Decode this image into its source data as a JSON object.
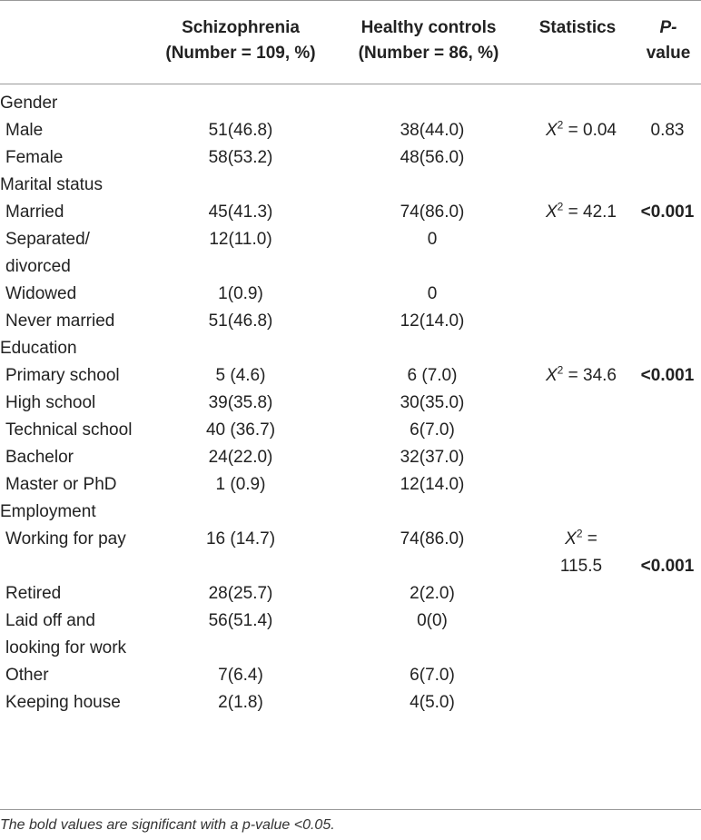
{
  "headers": {
    "schizophrenia_line1": "Schizophrenia",
    "schizophrenia_line2": "(Number = 109, %)",
    "controls_line1": "Healthy controls",
    "controls_line2": "(Number = 86, %)",
    "statistics": "Statistics",
    "pvalue_line1": "P-",
    "pvalue_line2": "value"
  },
  "rows": [
    {
      "label": "Gender",
      "schizophrenia": "",
      "controls": "",
      "stat_prefix": "",
      "stat_value": "",
      "p": "",
      "p_bold": false,
      "indent": false
    },
    {
      "label": "Male",
      "schizophrenia": "51(46.8)",
      "controls": "38(44.0)",
      "stat_prefix": "X",
      "stat_value": " = 0.04",
      "p": "0.83",
      "p_bold": false,
      "indent": true
    },
    {
      "label": "Female",
      "schizophrenia": "58(53.2)",
      "controls": "48(56.0)",
      "stat_prefix": "",
      "stat_value": "",
      "p": "",
      "p_bold": false,
      "indent": true
    },
    {
      "label": "Marital status",
      "schizophrenia": "",
      "controls": "",
      "stat_prefix": "",
      "stat_value": "",
      "p": "",
      "p_bold": false,
      "indent": false
    },
    {
      "label": "Married",
      "schizophrenia": "45(41.3)",
      "controls": "74(86.0)",
      "stat_prefix": "X",
      "stat_value": " = 42.1",
      "p": "<0.001",
      "p_bold": true,
      "indent": true
    },
    {
      "label": "Separated/ divorced",
      "schizophrenia": "12(11.0)",
      "controls": "0",
      "stat_prefix": "",
      "stat_value": "",
      "p": "",
      "p_bold": false,
      "indent": true
    },
    {
      "label": "Widowed",
      "schizophrenia": "1(0.9)",
      "controls": "0",
      "stat_prefix": "",
      "stat_value": "",
      "p": "",
      "p_bold": false,
      "indent": true
    },
    {
      "label": "Never married",
      "schizophrenia": "51(46.8)",
      "controls": "12(14.0)",
      "stat_prefix": "",
      "stat_value": "",
      "p": "",
      "p_bold": false,
      "indent": true
    },
    {
      "label": "Education",
      "schizophrenia": "",
      "controls": "",
      "stat_prefix": "",
      "stat_value": "",
      "p": "",
      "p_bold": false,
      "indent": false
    },
    {
      "label": "Primary school",
      "schizophrenia": "5 (4.6)",
      "controls": "6 (7.0)",
      "stat_prefix": "X",
      "stat_value": " = 34.6",
      "p": "<0.001",
      "p_bold": true,
      "indent": true
    },
    {
      "label": "High school",
      "schizophrenia": "39(35.8)",
      "controls": "30(35.0)",
      "stat_prefix": "",
      "stat_value": "",
      "p": "",
      "p_bold": false,
      "indent": true
    },
    {
      "label": "Technical school",
      "schizophrenia": "40 (36.7)",
      "controls": "6(7.0)",
      "stat_prefix": "",
      "stat_value": "",
      "p": "",
      "p_bold": false,
      "indent": true
    },
    {
      "label": "Bachelor",
      "schizophrenia": "24(22.0)",
      "controls": "32(37.0)",
      "stat_prefix": "",
      "stat_value": "",
      "p": "",
      "p_bold": false,
      "indent": true
    },
    {
      "label": "Master or PhD",
      "schizophrenia": "1 (0.9)",
      "controls": "12(14.0)",
      "stat_prefix": "",
      "stat_value": "",
      "p": "",
      "p_bold": false,
      "indent": true
    },
    {
      "label": "Employment",
      "schizophrenia": "",
      "controls": "",
      "stat_prefix": "",
      "stat_value": "",
      "p": "",
      "p_bold": false,
      "indent": false
    },
    {
      "label": "Working for pay",
      "schizophrenia": "16 (14.7)",
      "controls": "74(86.0)",
      "stat_prefix": "X",
      "stat_value": " = 115.5",
      "p": "<0.001",
      "p_bold": true,
      "indent": true,
      "stat_split": true
    },
    {
      "label": "Retired",
      "schizophrenia": "28(25.7)",
      "controls": "2(2.0)",
      "stat_prefix": "",
      "stat_value": "",
      "p": "",
      "p_bold": false,
      "indent": true
    },
    {
      "label": "Laid off and looking for work",
      "schizophrenia": "56(51.4)",
      "controls": "0(0)",
      "stat_prefix": "",
      "stat_value": "",
      "p": "",
      "p_bold": false,
      "indent": true
    },
    {
      "label": "Other",
      "schizophrenia": "7(6.4)",
      "controls": "6(7.0)",
      "stat_prefix": "",
      "stat_value": "",
      "p": "",
      "p_bold": false,
      "indent": true
    },
    {
      "label": "Keeping house",
      "schizophrenia": "2(1.8)",
      "controls": "4(5.0)",
      "stat_prefix": "",
      "stat_value": "",
      "p": "",
      "p_bold": false,
      "indent": true
    }
  ],
  "chi_sup": "2",
  "footnote": "The bold values are significant with a p-value <0.05."
}
